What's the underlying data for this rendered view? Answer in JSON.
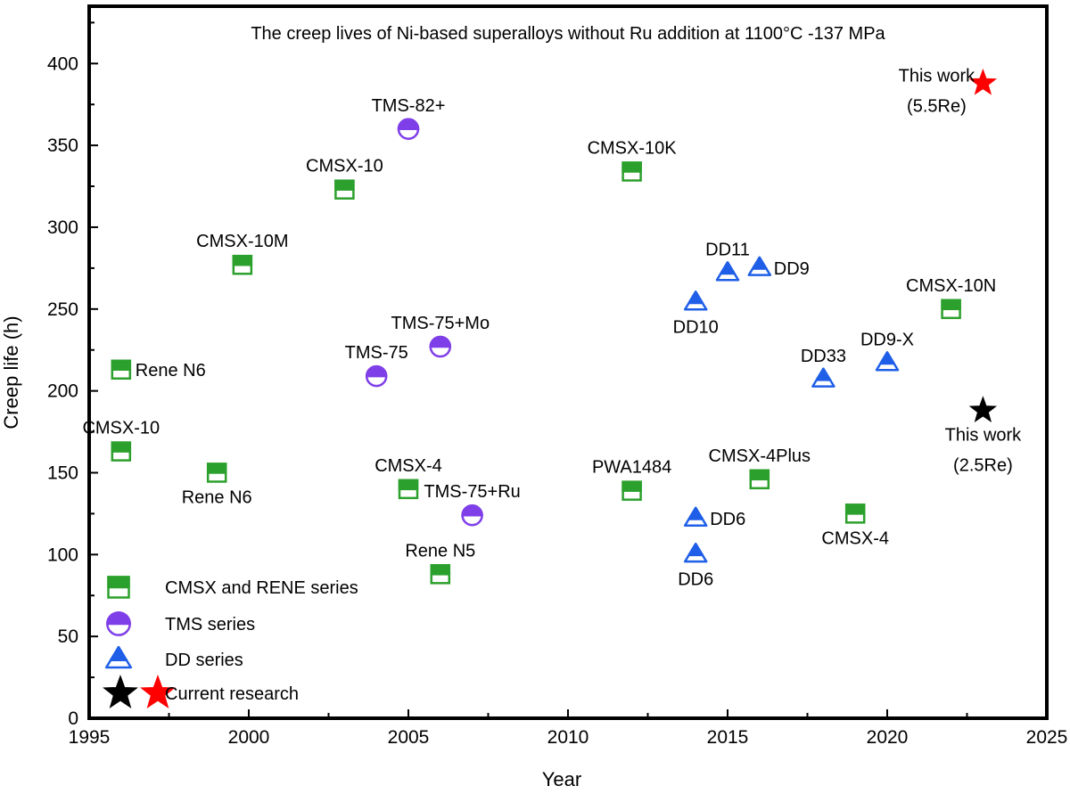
{
  "chart_data": {
    "type": "scatter",
    "title": "The creep lives of Ni-based superalloys without Ru addition at 1100°C -137 MPa",
    "xlabel": "Year",
    "ylabel": "Creep life (h)",
    "xlim": [
      1995,
      2025
    ],
    "ylim": [
      0,
      435
    ],
    "xticks": [
      1995,
      2000,
      2005,
      2010,
      2015,
      2020,
      2025
    ],
    "yticks": [
      0,
      50,
      100,
      150,
      200,
      250,
      300,
      350,
      400
    ],
    "grid": false,
    "legend_position": "bottom-left",
    "colors": {
      "cmsx": "#2ca02c",
      "tms": "#7f3fe8",
      "dd": "#1f5fe8",
      "current_2_5": "#000000",
      "current_5_5": "#ff0000"
    },
    "series": [
      {
        "key": "cmsx",
        "name": "CMSX and RENE series",
        "marker": "half-square",
        "color": "#2ca02c",
        "points": [
          {
            "x": 1996,
            "y": 213,
            "label": "Rene N6",
            "pos": "right"
          },
          {
            "x": 1996,
            "y": 163,
            "label": "CMSX-10",
            "pos": "above"
          },
          {
            "x": 1999,
            "y": 150,
            "label": "Rene N6",
            "pos": "below"
          },
          {
            "x": 1999.8,
            "y": 277,
            "label": "CMSX-10M",
            "pos": "above"
          },
          {
            "x": 2003,
            "y": 323,
            "label": "CMSX-10",
            "pos": "above"
          },
          {
            "x": 2005,
            "y": 140,
            "label": "CMSX-4",
            "pos": "above"
          },
          {
            "x": 2006,
            "y": 88,
            "label": "Rene N5",
            "pos": "above"
          },
          {
            "x": 2012,
            "y": 334,
            "label": "CMSX-10K",
            "pos": "above"
          },
          {
            "x": 2012,
            "y": 139,
            "label": "PWA1484",
            "pos": "above"
          },
          {
            "x": 2016,
            "y": 146,
            "label": "CMSX-4Plus",
            "pos": "above"
          },
          {
            "x": 2019,
            "y": 125,
            "label": "CMSX-4",
            "pos": "below"
          },
          {
            "x": 2022,
            "y": 250,
            "label": "CMSX-10N",
            "pos": "above"
          }
        ]
      },
      {
        "key": "tms",
        "name": "TMS series",
        "marker": "half-circle",
        "color": "#7f3fe8",
        "points": [
          {
            "x": 2005,
            "y": 360,
            "label": "TMS-82+",
            "pos": "above"
          },
          {
            "x": 2004,
            "y": 209,
            "label": "TMS-75",
            "pos": "above"
          },
          {
            "x": 2006,
            "y": 227,
            "label": "TMS-75+Mo",
            "pos": "above"
          },
          {
            "x": 2007,
            "y": 124,
            "label": "TMS-75+Ru",
            "pos": "above"
          }
        ]
      },
      {
        "key": "dd",
        "name": "DD series",
        "marker": "half-triangle",
        "color": "#1f5fe8",
        "points": [
          {
            "x": 2014,
            "y": 254,
            "label": "DD10",
            "pos": "below"
          },
          {
            "x": 2015,
            "y": 272,
            "label": "DD11",
            "pos": "above"
          },
          {
            "x": 2016,
            "y": 275,
            "label": "DD9",
            "pos": "right"
          },
          {
            "x": 2018,
            "y": 207,
            "label": "DD33",
            "pos": "above"
          },
          {
            "x": 2020,
            "y": 217,
            "label": "DD9-X",
            "pos": "above"
          },
          {
            "x": 2014,
            "y": 122,
            "label": "DD6",
            "pos": "right"
          },
          {
            "x": 2014,
            "y": 100,
            "label": "DD6",
            "pos": "below"
          }
        ]
      },
      {
        "key": "current",
        "name": "Current research",
        "marker": "star",
        "points": [
          {
            "x": 2023,
            "y": 188,
            "label": "This work",
            "label2": "(2.5Re)",
            "pos": "below",
            "color": "#000000"
          },
          {
            "x": 2023,
            "y": 388,
            "label": "This work",
            "label2": "(5.5Re)",
            "pos": "left",
            "color": "#ff0000"
          }
        ]
      }
    ]
  }
}
